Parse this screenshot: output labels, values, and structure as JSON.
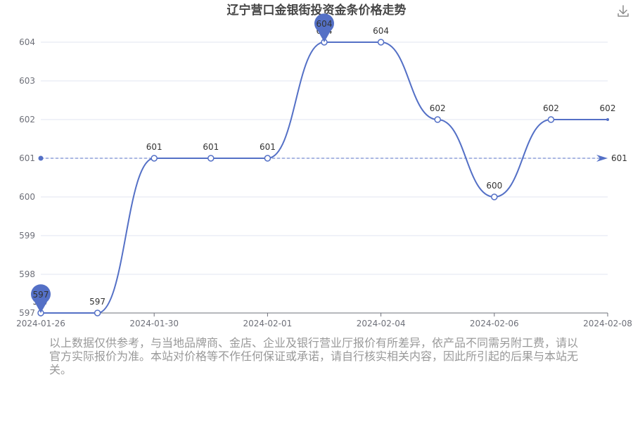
{
  "colors": {
    "series": "#5470c6",
    "grid": "#e0e6f1",
    "axis": "#6e7079",
    "text": "#333333",
    "title": "#464646",
    "disclaimer": "#999999",
    "pin_text": "#ffffff",
    "faded_label": "#cccccc"
  },
  "toolbar": {
    "download_icon": "download-icon"
  },
  "chart_data": {
    "type": "line",
    "title": "辽宁营口金银街投资金条价格走势",
    "xlabel": "",
    "ylabel": "",
    "x_axis_ticks": [
      "2024-01-26",
      "2024-01-30",
      "2024-02-01",
      "2024-02-04",
      "2024-02-06",
      "2024-02-08"
    ],
    "y_axis_ticks": [
      597,
      598,
      599,
      600,
      601,
      602,
      603,
      604
    ],
    "ylim": [
      597,
      604
    ],
    "grid": true,
    "smooth": true,
    "series": [
      {
        "points": [
          {
            "x": "2024-01-26",
            "y": 597
          },
          {
            "x": "",
            "y": 597
          },
          {
            "x": "2024-01-30",
            "y": 601
          },
          {
            "x": "",
            "y": 601
          },
          {
            "x": "2024-02-01",
            "y": 601
          },
          {
            "x": "",
            "y": 604
          },
          {
            "x": "2024-02-04",
            "y": 604
          },
          {
            "x": "",
            "y": 602
          },
          {
            "x": "2024-02-06",
            "y": 600
          },
          {
            "x": "",
            "y": 602
          },
          {
            "x": "2024-02-08",
            "y": 602
          }
        ]
      }
    ],
    "data_labels": [
      "597",
      "597",
      "601",
      "601",
      "601",
      "604",
      "604",
      "602",
      "600",
      "602",
      "602"
    ],
    "max_marker": {
      "value": "604",
      "index": 5
    },
    "min_marker": {
      "value": "597",
      "index": 0
    },
    "average_line": {
      "value": 601,
      "label": "601"
    }
  },
  "disclaimer": "以上数据仅供参考，与当地品牌商、金店、企业及银行营业厅报价有所差异，依产品不同需另附工费，请以官方实际报价为准。本站对价格等不作任何保证或承诺，请自行核实相关内容，因此所引起的后果与本站无关。"
}
